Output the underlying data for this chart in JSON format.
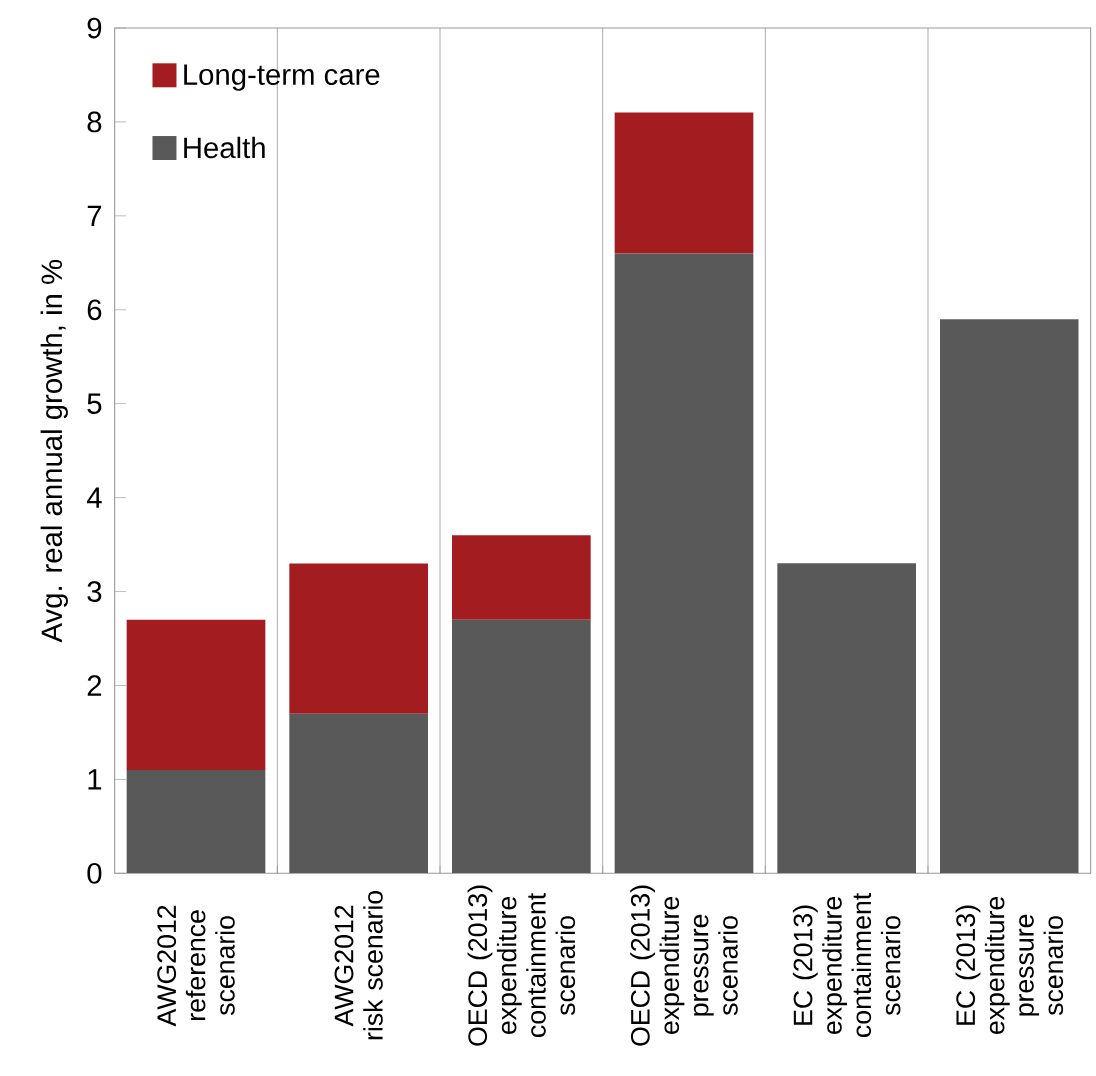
{
  "chart_data": {
    "type": "bar",
    "stacked": true,
    "categories": [
      "AWG2012 reference scenario",
      "AWG2012 risk scenario",
      "OECD (2013) expenditure containment scenario",
      "OECD (2013) expenditure pressure scenario",
      "EC (2013) expenditure containment scenario",
      "EC (2013) expenditure pressure scenario"
    ],
    "series": [
      {
        "name": "Health",
        "color": "#595959",
        "values": [
          1.1,
          1.7,
          2.7,
          6.6,
          3.3,
          5.9
        ]
      },
      {
        "name": "Long-term care",
        "color": "#a31c20",
        "values": [
          1.6,
          1.6,
          0.9,
          1.5,
          null,
          null
        ]
      }
    ],
    "ylabel": "Avg. real annual growth, in %",
    "ylim": [
      0,
      9
    ],
    "yticks": [
      0,
      1,
      2,
      3,
      4,
      5,
      6,
      7,
      8,
      9
    ],
    "grid": "x",
    "legend": "top left"
  }
}
